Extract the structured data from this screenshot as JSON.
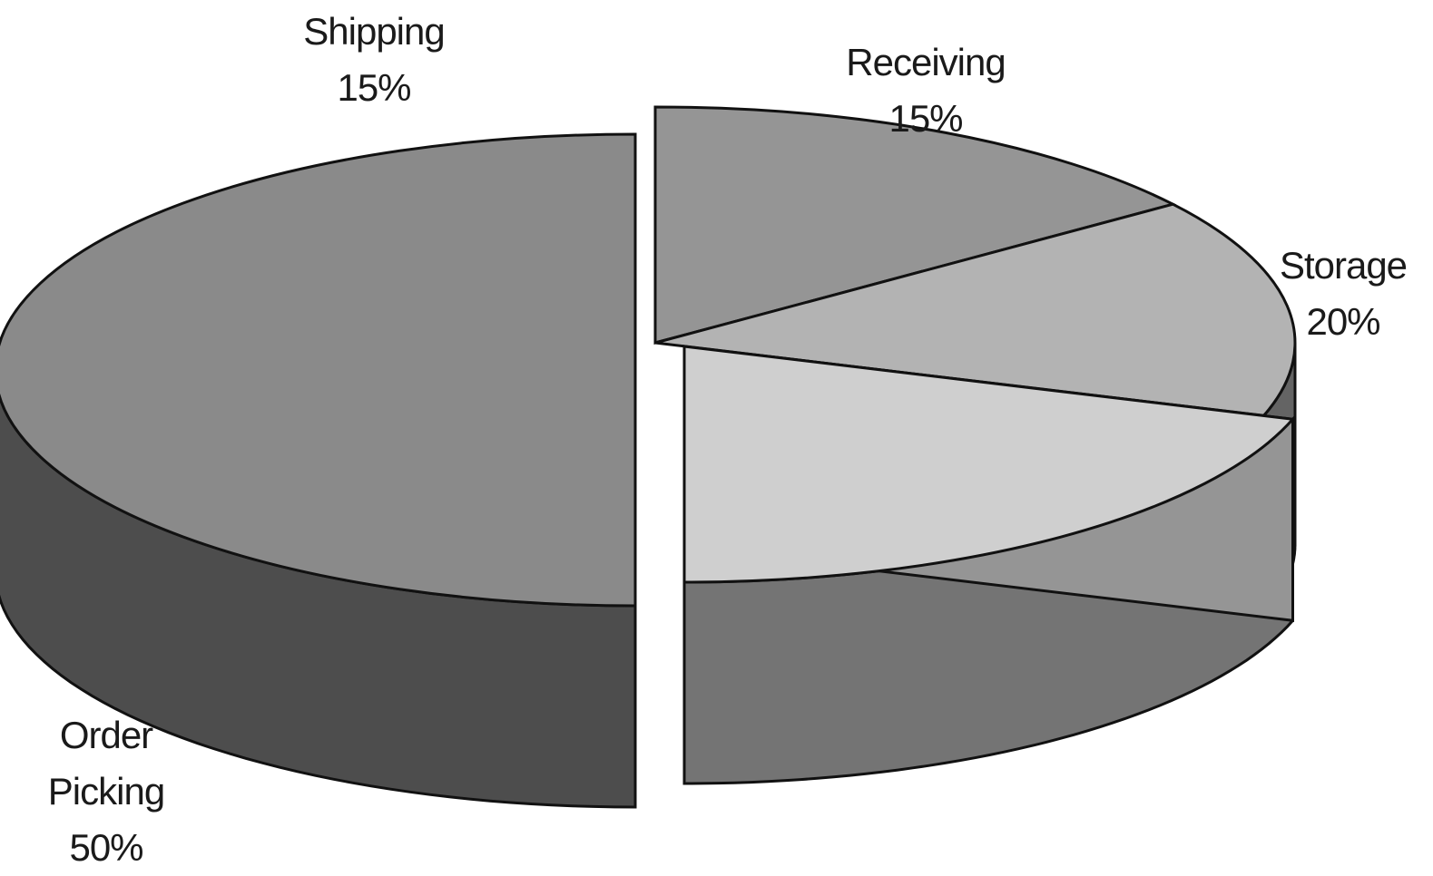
{
  "chart_data": {
    "type": "pie",
    "style": "3d-exploded",
    "slices": [
      {
        "label_lines": [
          "Shipping"
        ],
        "value": 15,
        "value_text": "15%",
        "color": "#959595",
        "exploded": false
      },
      {
        "label_lines": [
          "Receiving"
        ],
        "value": 15,
        "value_text": "15%",
        "color": "#b3b3b3",
        "exploded": false
      },
      {
        "label_lines": [
          "Storage"
        ],
        "value": 20,
        "value_text": "20%",
        "color": "#cfcfcf",
        "exploded": true
      },
      {
        "label_lines": [
          "Order",
          "Picking"
        ],
        "value": 50,
        "value_text": "50%",
        "color": "#8a8a8a",
        "exploded": true
      }
    ]
  }
}
